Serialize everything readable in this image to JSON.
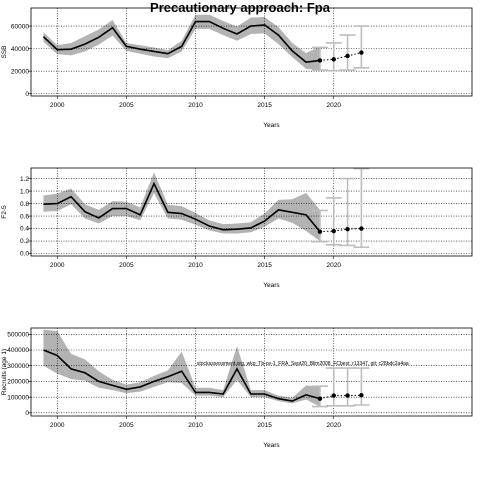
{
  "title": "Precautionary approach: Fpa",
  "colors": {
    "band": "#b3b3b3",
    "line": "#000000",
    "proj_bar": "#bdbdbd",
    "grid": "#000000"
  },
  "chart_data": [
    {
      "type": "line",
      "xlabel": "Years",
      "ylabel": "SSB",
      "xlim": [
        1998.1,
        2030
      ],
      "ylim": [
        -2000,
        76000
      ],
      "xticks": [
        2000,
        2005,
        2010,
        2015,
        2020
      ],
      "yticks": [
        0,
        20000,
        40000,
        60000
      ],
      "grid": true,
      "years": [
        1999,
        2000,
        2001,
        2002,
        2003,
        2004,
        2005,
        2006,
        2007,
        2008,
        2009,
        2010,
        2011,
        2012,
        2013,
        2014,
        2015,
        2016,
        2017,
        2018,
        2019
      ],
      "median": [
        50500,
        39000,
        39500,
        44000,
        50000,
        58500,
        42000,
        39500,
        37500,
        35500,
        42000,
        64000,
        64000,
        58000,
        53000,
        60000,
        61000,
        52000,
        38000,
        28000,
        29500
      ],
      "upper": [
        54500,
        43000,
        45000,
        51000,
        57000,
        65500,
        45000,
        43000,
        41000,
        38500,
        47000,
        70000,
        70000,
        64500,
        59500,
        67500,
        68000,
        59000,
        45000,
        36000,
        42000
      ],
      "lower": [
        46000,
        35000,
        34000,
        37500,
        43500,
        51500,
        38000,
        35500,
        33000,
        31500,
        37500,
        57500,
        57500,
        52000,
        47000,
        53000,
        53500,
        44000,
        32500,
        22000,
        21000
      ],
      "proj_years": [
        2019,
        2020,
        2021,
        2022
      ],
      "proj_median": [
        29500,
        30500,
        33500,
        36500
      ],
      "proj_upper": [
        41000,
        45000,
        52000,
        60000
      ],
      "proj_lower": [
        21000,
        20500,
        21000,
        23000
      ]
    },
    {
      "type": "line",
      "xlabel": "Years",
      "ylabel": "F2-5",
      "xlim": [
        1998.1,
        2030
      ],
      "ylim": [
        -0.04,
        1.37
      ],
      "xticks": [
        2000,
        2005,
        2010,
        2015,
        2020
      ],
      "yticks": [
        0.0,
        0.2,
        0.4,
        0.6,
        0.8,
        1.0,
        1.2
      ],
      "ytick_labels": [
        "0.0",
        "0.2",
        "0.4",
        "0.6",
        "0.8",
        "1.0",
        "1.2"
      ],
      "grid": true,
      "years": [
        1999,
        2000,
        2001,
        2002,
        2003,
        2004,
        2005,
        2006,
        2007,
        2008,
        2009,
        2010,
        2011,
        2012,
        2013,
        2014,
        2015,
        2016,
        2017,
        2018,
        2019
      ],
      "median": [
        0.79,
        0.8,
        0.91,
        0.67,
        0.57,
        0.72,
        0.72,
        0.62,
        1.12,
        0.66,
        0.64,
        0.55,
        0.44,
        0.38,
        0.39,
        0.41,
        0.52,
        0.7,
        0.66,
        0.62,
        0.35
      ],
      "upper": [
        0.93,
        0.96,
        1.04,
        0.79,
        0.7,
        0.84,
        0.83,
        0.74,
        1.3,
        0.78,
        0.76,
        0.65,
        0.53,
        0.47,
        0.48,
        0.5,
        0.64,
        0.86,
        0.87,
        0.97,
        0.7
      ],
      "lower": [
        0.67,
        0.68,
        0.79,
        0.56,
        0.48,
        0.6,
        0.6,
        0.53,
        0.97,
        0.56,
        0.54,
        0.46,
        0.37,
        0.32,
        0.32,
        0.34,
        0.43,
        0.56,
        0.49,
        0.36,
        0.2
      ],
      "proj_years": [
        2019,
        2020,
        2021,
        2022
      ],
      "proj_median": [
        0.35,
        0.36,
        0.39,
        0.4
      ],
      "proj_upper": [
        0.69,
        0.89,
        1.2,
        1.36
      ],
      "proj_lower": [
        0.19,
        0.14,
        0.13,
        0.1
      ]
    },
    {
      "type": "line",
      "xlabel": "Years",
      "ylabel": "Recruits (age 1)",
      "xlim": [
        1998.1,
        2030
      ],
      "ylim": [
        -20000,
        540000
      ],
      "xticks": [
        2000,
        2005,
        2010,
        2015,
        2020
      ],
      "yticks": [
        0,
        100000,
        200000,
        300000,
        400000,
        500000
      ],
      "ytick_labels": [
        "0",
        "100000",
        "200000",
        "300000",
        "400000",
        "500000"
      ],
      "grid": true,
      "annotation": "stockassessment.org, wkg_Tb-ce-1_FRA_Sept20_Blim2008_FCbest, r13347, git: c28bdc2a4aa",
      "years": [
        1999,
        2000,
        2001,
        2002,
        2003,
        2004,
        2005,
        2006,
        2007,
        2008,
        2009,
        2010,
        2011,
        2012,
        2013,
        2014,
        2015,
        2016,
        2017,
        2018,
        2019
      ],
      "median": [
        400000,
        365000,
        280000,
        255000,
        200000,
        175000,
        150000,
        165000,
        200000,
        230000,
        265000,
        130000,
        130000,
        120000,
        280000,
        120000,
        120000,
        90000,
        75000,
        115000,
        90000
      ],
      "upper": [
        530000,
        520000,
        375000,
        340000,
        265000,
        210000,
        180000,
        195000,
        235000,
        270000,
        390000,
        160000,
        160000,
        145000,
        425000,
        145000,
        145000,
        110000,
        95000,
        175000,
        165000
      ],
      "lower": [
        300000,
        250000,
        215000,
        205000,
        160000,
        145000,
        125000,
        135000,
        165000,
        195000,
        190000,
        110000,
        110000,
        100000,
        210000,
        100000,
        100000,
        75000,
        60000,
        85000,
        40000
      ],
      "proj_years": [
        2019,
        2020,
        2021,
        2022
      ],
      "proj_median": [
        90000,
        110000,
        110000,
        112000
      ],
      "proj_upper": [
        170000,
        285000,
        285000,
        285000
      ],
      "proj_lower": [
        40000,
        45000,
        45000,
        50000
      ]
    }
  ]
}
